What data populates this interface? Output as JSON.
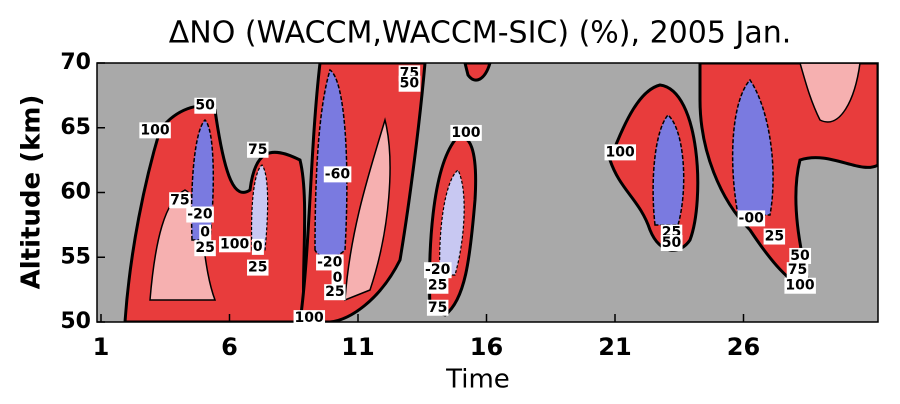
{
  "chart_data": {
    "type": "contour",
    "title": "ΔNO (WACCM,WACCM-SIC) (%), 2005 Jan.",
    "x_label": "Time",
    "y_label": "Altitude (km)",
    "xlim": [
      1,
      31
    ],
    "xticks": [
      1,
      6,
      11,
      16,
      21,
      26
    ],
    "ylim": [
      50,
      70
    ],
    "yticks": [
      50,
      55,
      60,
      65,
      70
    ],
    "background": "#a9a9a9",
    "contour_labels": [
      {
        "text": "100",
        "x": 3.1,
        "y": 64.8
      },
      {
        "text": "50",
        "x": 5.05,
        "y": 66.7
      },
      {
        "text": "75",
        "x": 4.07,
        "y": 59.4
      },
      {
        "text": "-20",
        "x": 4.85,
        "y": 58.3
      },
      {
        "text": "0",
        "x": 5.05,
        "y": 56.9
      },
      {
        "text": "25",
        "x": 5.05,
        "y": 55.7
      },
      {
        "text": "100",
        "x": 6.2,
        "y": 56.0
      },
      {
        "text": "75",
        "x": 7.1,
        "y": 63.3
      },
      {
        "text": "0",
        "x": 7.1,
        "y": 55.8
      },
      {
        "text": "25",
        "x": 7.1,
        "y": 54.2
      },
      {
        "text": "-60",
        "x": 10.2,
        "y": 61.4
      },
      {
        "text": "-20",
        "x": 9.9,
        "y": 54.6
      },
      {
        "text": "0",
        "x": 10.2,
        "y": 53.4
      },
      {
        "text": "25",
        "x": 10.1,
        "y": 52.3
      },
      {
        "text": "100",
        "x": 9.1,
        "y": 50.3
      },
      {
        "text": "75",
        "x": 13.0,
        "y": 69.2
      },
      {
        "text": "50",
        "x": 13.0,
        "y": 68.4
      },
      {
        "text": "100",
        "x": 15.2,
        "y": 64.6
      },
      {
        "text": "-20",
        "x": 14.1,
        "y": 54.0
      },
      {
        "text": "25",
        "x": 14.1,
        "y": 52.8
      },
      {
        "text": "75",
        "x": 14.1,
        "y": 51.1
      },
      {
        "text": "100",
        "x": 21.2,
        "y": 63.1
      },
      {
        "text": "25",
        "x": 23.2,
        "y": 56.9
      },
      {
        "text": "50",
        "x": 23.2,
        "y": 56.1
      },
      {
        "text": "-00",
        "x": 26.3,
        "y": 58.0
      },
      {
        "text": "25",
        "x": 27.2,
        "y": 56.6
      },
      {
        "text": "50",
        "x": 28.2,
        "y": 55.1
      },
      {
        "text": "75",
        "x": 28.1,
        "y": 54.0
      },
      {
        "text": "100",
        "x": 28.2,
        "y": 52.8
      }
    ]
  }
}
